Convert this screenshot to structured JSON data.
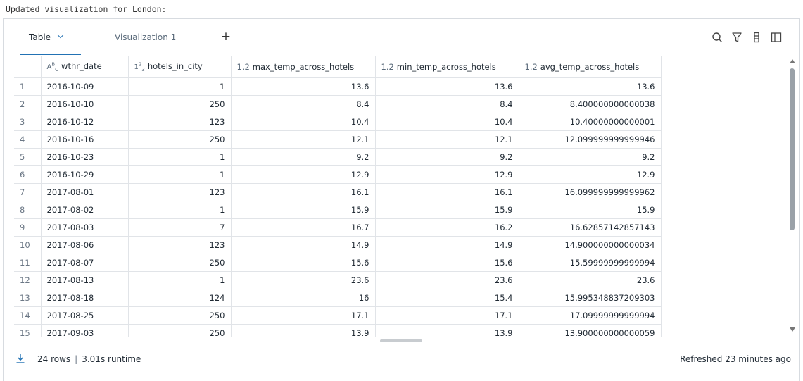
{
  "output_text": "Updated visualization for London:",
  "tabs": [
    {
      "label": "Table",
      "active": true
    },
    {
      "label": "Visualization 1",
      "active": false
    }
  ],
  "add_tab_label": "+",
  "toolbar_icons": [
    "search-icon",
    "filter-icon",
    "column-settings-icon",
    "sidebar-toggle-icon"
  ],
  "table": {
    "columns": [
      {
        "type_icon": "ABC",
        "name": "wthr_date"
      },
      {
        "type_icon": "123",
        "name": "hotels_in_city"
      },
      {
        "type_icon": "1.2",
        "name": "max_temp_across_hotels"
      },
      {
        "type_icon": "1.2",
        "name": "min_temp_across_hotels"
      },
      {
        "type_icon": "1.2",
        "name": "avg_temp_across_hotels"
      }
    ],
    "rows": [
      [
        "1",
        "2016-10-09",
        "1",
        "13.6",
        "13.6",
        "13.6"
      ],
      [
        "2",
        "2016-10-10",
        "250",
        "8.4",
        "8.4",
        "8.400000000000038"
      ],
      [
        "3",
        "2016-10-12",
        "123",
        "10.4",
        "10.4",
        "10.40000000000001"
      ],
      [
        "4",
        "2016-10-16",
        "250",
        "12.1",
        "12.1",
        "12.099999999999946"
      ],
      [
        "5",
        "2016-10-23",
        "1",
        "9.2",
        "9.2",
        "9.2"
      ],
      [
        "6",
        "2016-10-29",
        "1",
        "12.9",
        "12.9",
        "12.9"
      ],
      [
        "7",
        "2017-08-01",
        "123",
        "16.1",
        "16.1",
        "16.099999999999962"
      ],
      [
        "8",
        "2017-08-02",
        "1",
        "15.9",
        "15.9",
        "15.9"
      ],
      [
        "9",
        "2017-08-03",
        "7",
        "16.7",
        "16.2",
        "16.62857142857143"
      ],
      [
        "10",
        "2017-08-06",
        "123",
        "14.9",
        "14.9",
        "14.900000000000034"
      ],
      [
        "11",
        "2017-08-07",
        "250",
        "15.6",
        "15.6",
        "15.59999999999994"
      ],
      [
        "12",
        "2017-08-13",
        "1",
        "23.6",
        "23.6",
        "23.6"
      ],
      [
        "13",
        "2017-08-18",
        "124",
        "16",
        "15.4",
        "15.995348837209303"
      ],
      [
        "14",
        "2017-08-25",
        "250",
        "17.1",
        "17.1",
        "17.09999999999994"
      ],
      [
        "15",
        "2017-09-03",
        "250",
        "13.9",
        "13.9",
        "13.900000000000059"
      ]
    ]
  },
  "footer": {
    "rows_label": "24 rows",
    "separator": "|",
    "runtime_label": "3.01s runtime",
    "refreshed_label": "Refreshed 23 minutes ago"
  }
}
